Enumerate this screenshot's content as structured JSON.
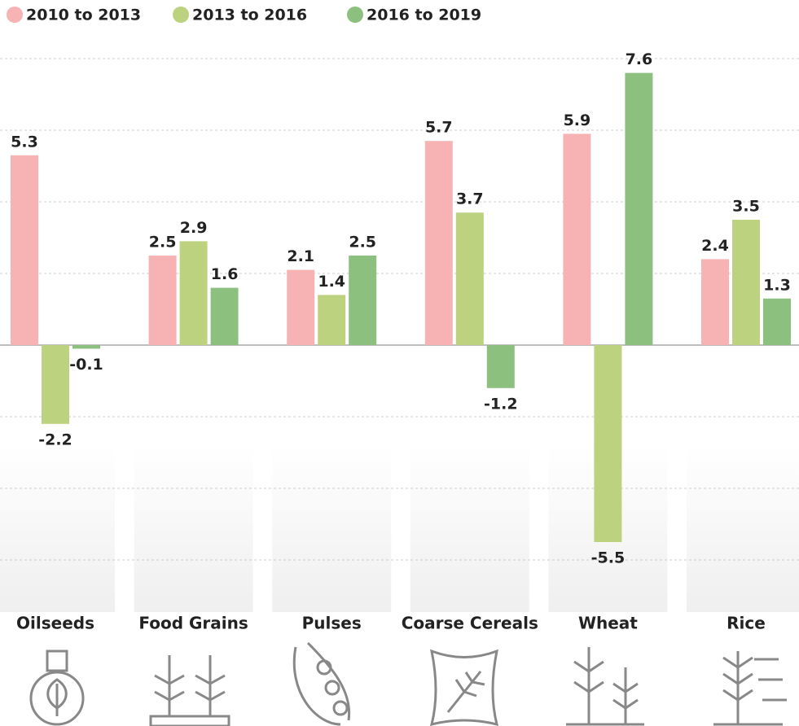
{
  "chart_data": {
    "type": "bar",
    "categories": [
      "Oilseeds",
      "Food Grains",
      "Pulses",
      "Coarse Cereals",
      "Wheat",
      "Rice"
    ],
    "series": [
      {
        "name": "2010 to 2013",
        "color": "#f7b3b3",
        "values": [
          5.3,
          2.5,
          2.1,
          5.7,
          5.9,
          2.4
        ]
      },
      {
        "name": "2013 to 2016",
        "color": "#bdd27e",
        "values": [
          -2.2,
          2.9,
          1.4,
          3.7,
          -5.5,
          3.5
        ]
      },
      {
        "name": "2016 to 2019",
        "color": "#8cc07e",
        "values": [
          -0.1,
          1.6,
          2.5,
          -1.2,
          7.6,
          1.3
        ]
      }
    ],
    "ylim": [
      -6,
      8
    ],
    "yticks": [
      -6,
      -4,
      -2,
      0,
      2,
      4,
      6,
      8
    ],
    "grid": true,
    "legend": "top-left"
  }
}
